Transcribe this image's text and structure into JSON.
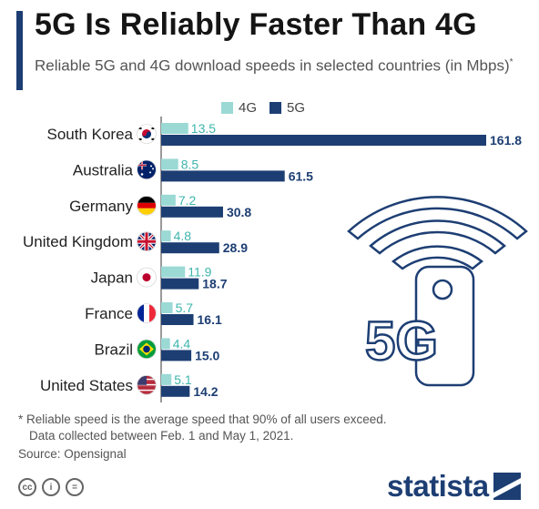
{
  "header": {
    "title": "5G Is Reliably Faster Than 4G",
    "subtitle": "Reliable 5G and 4G download speeds in selected countries (in Mbps)",
    "subtitle_marker": "*"
  },
  "legend": {
    "label_4g": "4G",
    "label_5g": "5G"
  },
  "colors": {
    "c4g": "#9bd9d5",
    "c5g": "#1d3e73",
    "accent": "#1d3e73",
    "illustration": "#1d3e73"
  },
  "chart_data": {
    "type": "bar",
    "orientation": "horizontal",
    "categories": [
      "South Korea",
      "Australia",
      "Germany",
      "United Kingdom",
      "Japan",
      "France",
      "Brazil",
      "United States"
    ],
    "series": [
      {
        "name": "4G",
        "values": [
          13.5,
          8.5,
          7.2,
          4.8,
          11.9,
          5.7,
          4.4,
          5.1
        ]
      },
      {
        "name": "5G",
        "values": [
          161.8,
          61.5,
          30.8,
          28.9,
          18.7,
          16.1,
          15.0,
          14.2
        ]
      }
    ],
    "category_icons": [
      "flag-south-korea-icon",
      "flag-australia-icon",
      "flag-germany-icon",
      "flag-uk-icon",
      "flag-japan-icon",
      "flag-france-icon",
      "flag-brazil-icon",
      "flag-us-icon"
    ],
    "xlim": [
      0,
      161.8
    ],
    "grid": false,
    "legend_position": "top"
  },
  "illustration": {
    "label": "5G",
    "icon": "phone-wifi-icon"
  },
  "footnote": {
    "line1": "* Reliable speed is the average speed that 90% of all users exceed.",
    "line2": "Data collected between Feb. 1 and May 1, 2021."
  },
  "source": "Source: Opensignal",
  "brand": {
    "name": "statista",
    "license_icons": [
      "cc-icon",
      "by-icon",
      "nd-icon"
    ]
  }
}
